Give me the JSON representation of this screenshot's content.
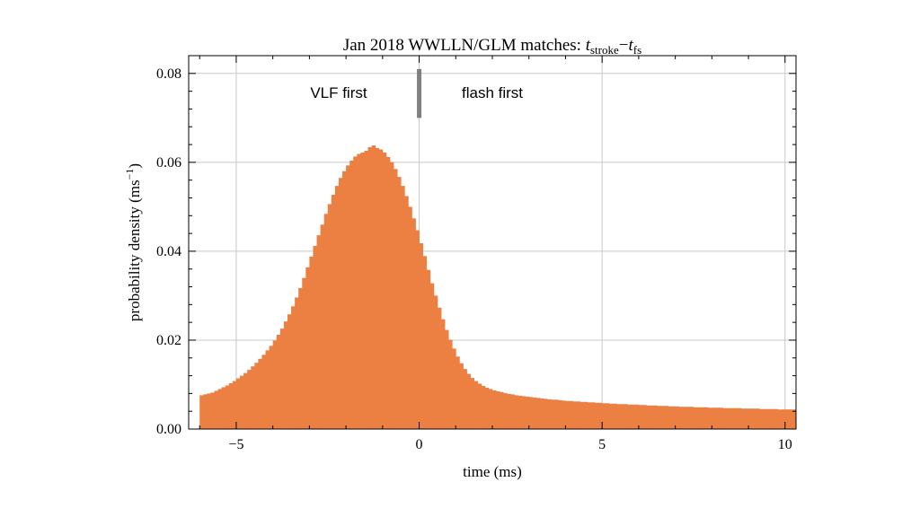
{
  "chart_data": {
    "type": "bar",
    "title_prefix": "Jan 2018 WWLLN/GLM matches: ",
    "title_t1": "t",
    "title_sub1": "stroke",
    "title_minus": "−",
    "title_t2": "t",
    "title_sub2": "fs",
    "xlabel": "time (ms)",
    "ylabel_main": "probability density (ms",
    "ylabel_sup": "−1",
    "ylabel_close": ")",
    "xlim": [
      -6.3,
      10.3
    ],
    "ylim": [
      0,
      0.084
    ],
    "xticks": [
      -5,
      0,
      5,
      10
    ],
    "xtick_labels": [
      "−5",
      "0",
      "5",
      "10"
    ],
    "yticks": [
      0.0,
      0.02,
      0.04,
      0.06,
      0.08
    ],
    "ytick_labels": [
      "0.00",
      "0.02",
      "0.04",
      "0.06",
      "0.08"
    ],
    "grid": true,
    "bar_color": "#ec8042",
    "marker_x": 0,
    "marker_range": [
      0.07,
      0.081
    ],
    "marker_color": "#808080",
    "annotations": [
      "VLF first",
      "flash first"
    ],
    "bin_start": -6.0,
    "bin_width": 0.1,
    "values": [
      0.0076,
      0.0078,
      0.008,
      0.0082,
      0.0086,
      0.009,
      0.0094,
      0.0098,
      0.0103,
      0.0108,
      0.0114,
      0.012,
      0.0126,
      0.0133,
      0.0141,
      0.0149,
      0.0158,
      0.0167,
      0.0177,
      0.0187,
      0.0199,
      0.0212,
      0.0226,
      0.0242,
      0.0258,
      0.0276,
      0.0296,
      0.0317,
      0.034,
      0.0364,
      0.0388,
      0.0412,
      0.0436,
      0.046,
      0.0484,
      0.0506,
      0.0527,
      0.0547,
      0.0565,
      0.058,
      0.0593,
      0.0604,
      0.0613,
      0.0619,
      0.0622,
      0.0626,
      0.0634,
      0.0638,
      0.0632,
      0.0629,
      0.0622,
      0.0612,
      0.06,
      0.0585,
      0.0567,
      0.0547,
      0.0524,
      0.05,
      0.0474,
      0.0447,
      0.0418,
      0.0389,
      0.0358,
      0.0328,
      0.03,
      0.0273,
      0.0247,
      0.0223,
      0.0201,
      0.0181,
      0.0163,
      0.0148,
      0.0135,
      0.0124,
      0.0115,
      0.0108,
      0.0102,
      0.0097,
      0.0093,
      0.009,
      0.0087,
      0.0085,
      0.0083,
      0.0081,
      0.0079,
      0.0078,
      0.0076,
      0.0075,
      0.0074,
      0.0073,
      0.0072,
      0.0071,
      0.007,
      0.0069,
      0.0068,
      0.0067,
      0.0066,
      0.0066,
      0.0065,
      0.0064,
      0.0063,
      0.0063,
      0.0062,
      0.0062,
      0.0061,
      0.0061,
      0.006,
      0.006,
      0.0059,
      0.0059,
      0.0058,
      0.0058,
      0.0057,
      0.0057,
      0.0056,
      0.0056,
      0.0056,
      0.0055,
      0.0055,
      0.0055,
      0.0054,
      0.0054,
      0.0053,
      0.0053,
      0.0053,
      0.0052,
      0.0052,
      0.0052,
      0.0051,
      0.0051,
      0.0051,
      0.005,
      0.005,
      0.005,
      0.005,
      0.0049,
      0.0049,
      0.0049,
      0.0049,
      0.0048,
      0.0048,
      0.0048,
      0.0048,
      0.0047,
      0.0047,
      0.0047,
      0.0047,
      0.0047,
      0.0046,
      0.0046,
      0.0046,
      0.0046,
      0.0046,
      0.0045,
      0.0045,
      0.0045,
      0.0045,
      0.0045,
      0.0044,
      0.0044,
      0.0044,
      0.0044,
      0.0044
    ]
  }
}
